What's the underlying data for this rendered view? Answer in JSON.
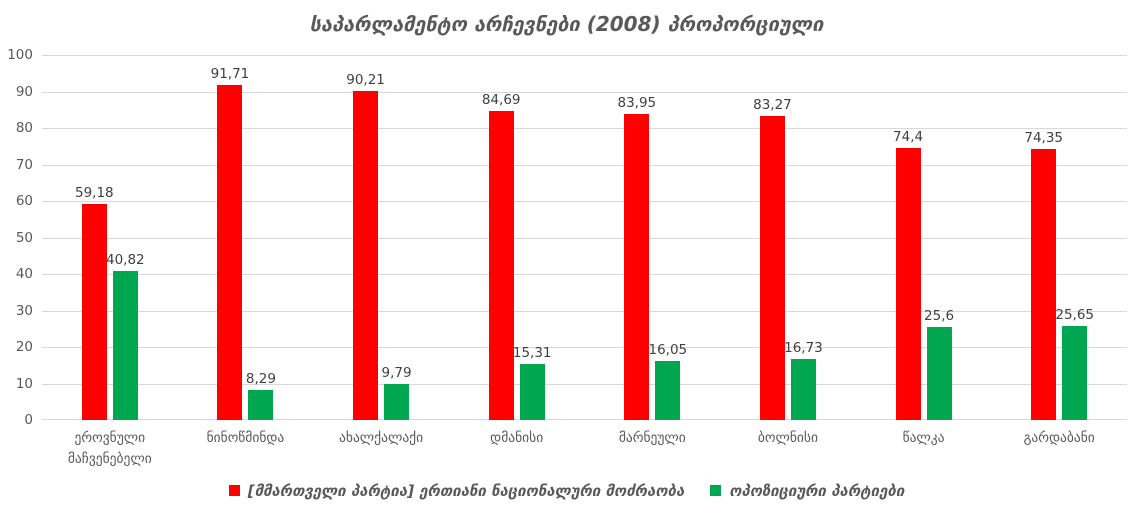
{
  "chart_data": {
    "type": "bar",
    "title": "საპარლამენტო არჩევნები (2008) პროპორციული",
    "categories": [
      "ეროვნული მაჩვენებელი",
      "ნინოწმინდა",
      "ახალქალაქი",
      "დმანისი",
      "მარნეული",
      "ბოლნისი",
      "წალკა",
      "გარდაბანი"
    ],
    "series": [
      {
        "name": "[მმართველი პარტია] ერთიანი ნაციონალური მოძრაობა",
        "color": "#FF0000",
        "values": [
          59.18,
          91.71,
          90.21,
          84.69,
          83.95,
          83.27,
          74.4,
          74.35
        ],
        "labels": [
          "59,18",
          "91,71",
          "90,21",
          "84,69",
          "83,95",
          "83,27",
          "74,4",
          "74,35"
        ]
      },
      {
        "name": "ოპოზიციური პარტიები",
        "color": "#00A650",
        "values": [
          40.82,
          8.29,
          9.79,
          15.31,
          16.05,
          16.73,
          25.6,
          25.65
        ],
        "labels": [
          "40,82",
          "8,29",
          "9,79",
          "15,31",
          "16,05",
          "16,73",
          "25,6",
          "25,65"
        ]
      }
    ],
    "ylim": [
      0,
      100
    ],
    "yticks": [
      0,
      10,
      20,
      30,
      40,
      50,
      60,
      70,
      80,
      90,
      100
    ],
    "grid": true,
    "legend_position": "bottom",
    "colors": {
      "axis_text": "#595959",
      "gridline": "#D9D9D9",
      "data_label": "#404040",
      "title_text": "#595959",
      "background": "#FFFFFF"
    }
  }
}
